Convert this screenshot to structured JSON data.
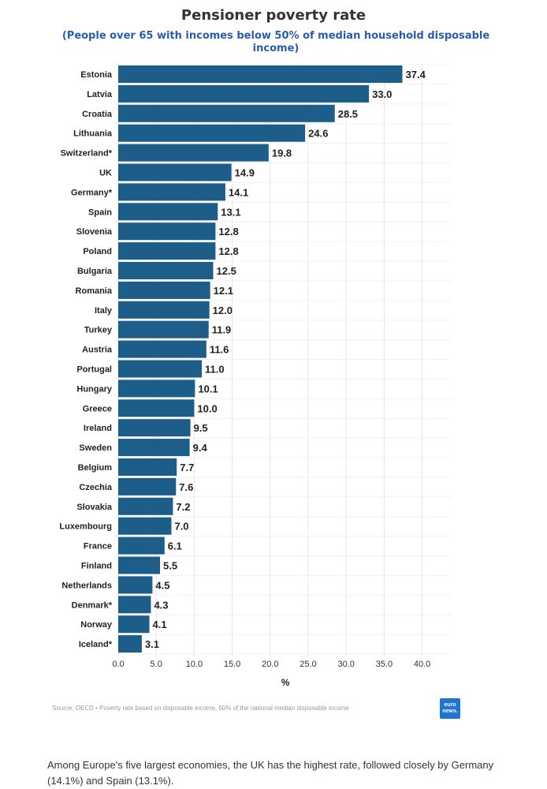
{
  "chart_data": {
    "type": "bar",
    "orientation": "horizontal",
    "title": "Pensioner poverty rate",
    "subtitle": "(People over 65 with incomes below 50% of median household disposable income)",
    "categories": [
      "Estonia",
      "Latvia",
      "Croatia",
      "Lithuania",
      "Switzerland*",
      "UK",
      "Germany*",
      "Spain",
      "Slovenia",
      "Poland",
      "Bulgaria",
      "Romania",
      "Italy",
      "Turkey",
      "Austria",
      "Portugal",
      "Hungary",
      "Greece",
      "Ireland",
      "Sweden",
      "Belgium",
      "Czechia",
      "Slovakia",
      "Luxembourg",
      "France",
      "Finland",
      "Netherlands",
      "Denmark*",
      "Norway",
      "Iceland*"
    ],
    "values": [
      37.4,
      33.0,
      28.5,
      24.6,
      19.8,
      14.9,
      14.1,
      13.1,
      12.8,
      12.8,
      12.5,
      12.1,
      12.0,
      11.9,
      11.6,
      11.0,
      10.1,
      10.0,
      9.5,
      9.4,
      7.7,
      7.6,
      7.2,
      7.0,
      6.1,
      5.5,
      4.5,
      4.3,
      4.1,
      3.1
    ],
    "value_labels": [
      "37.4",
      "33.0",
      "28.5",
      "24.6",
      "19.8",
      "14.9",
      "14.1",
      "13.1",
      "12.8",
      "12.8",
      "12.5",
      "12.1",
      "12.0",
      "11.9",
      "11.6",
      "11.0",
      "10.1",
      "10.0",
      "9.5",
      "9.4",
      "7.7",
      "7.6",
      "7.2",
      "7.0",
      "6.1",
      "5.5",
      "4.5",
      "4.3",
      "4.1",
      "3.1"
    ],
    "xlabel": "%",
    "ylabel": "",
    "xlim": [
      0,
      40
    ],
    "xticks": [
      "0.0",
      "5.0",
      "10.0",
      "15.0",
      "20.0",
      "25.0",
      "30.0",
      "35.0",
      "40.0"
    ],
    "grid": true,
    "bar_color": "#1c5d8a"
  },
  "source": "Source: OECD • Poverty rate based on disposable income, 50% of the national median disposable income",
  "logo_text": "euro news.",
  "caption": "Among Europe's five largest economies, the UK has the highest rate, followed closely by Germany (14.1%) and Spain (13.1%)."
}
